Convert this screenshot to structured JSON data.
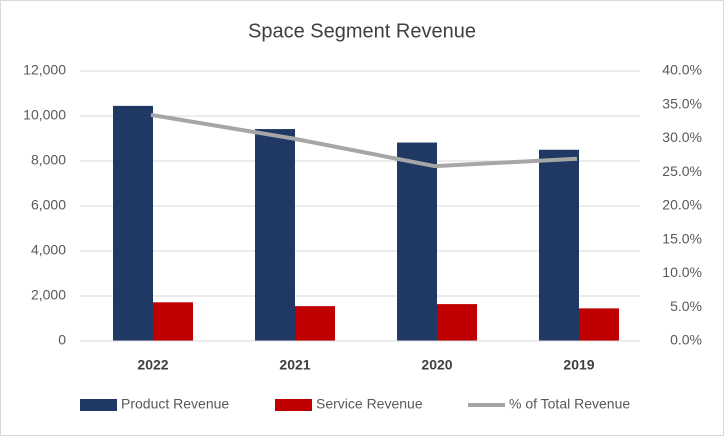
{
  "chart_data": {
    "type": "bar",
    "title": "Space Segment Revenue",
    "categories": [
      "2022",
      "2021",
      "2020",
      "2019"
    ],
    "series": [
      {
        "name": "Product Revenue",
        "color": "#1f3864",
        "values": [
          10450,
          9420,
          8820,
          8500
        ]
      },
      {
        "name": "Service Revenue",
        "color": "#c00000",
        "values": [
          1720,
          1550,
          1640,
          1450
        ]
      },
      {
        "name": "% of Total Revenue",
        "color": "#a6a6a6",
        "type": "line",
        "axis": "y2",
        "values": [
          33.5,
          30.0,
          25.9,
          27.0
        ]
      }
    ],
    "ylim": [
      0,
      12000
    ],
    "yticks": [
      0,
      {
        "value": 2000,
        "label": "2,000"
      },
      {
        "value": 4000,
        "label": "4,000"
      },
      {
        "value": 6000,
        "label": "6,000"
      },
      {
        "value": 8000,
        "label": "8,000"
      },
      {
        "value": 10000,
        "label": "10,000"
      },
      {
        "value": 12000,
        "label": "12,000"
      }
    ],
    "y2lim": [
      0,
      40
    ],
    "y2ticks": [
      {
        "value": 0,
        "label": "0.0%"
      },
      {
        "value": 5,
        "label": "5.0%"
      },
      {
        "value": 10,
        "label": "10.0%"
      },
      {
        "value": 15,
        "label": "15.0%"
      },
      {
        "value": 20,
        "label": "20.0%"
      },
      {
        "value": 25,
        "label": "25.0%"
      },
      {
        "value": 30,
        "label": "30.0%"
      },
      {
        "value": 35,
        "label": "35.0%"
      },
      {
        "value": 40,
        "label": "40.0%"
      }
    ],
    "grid": true,
    "legend": "bottom"
  }
}
